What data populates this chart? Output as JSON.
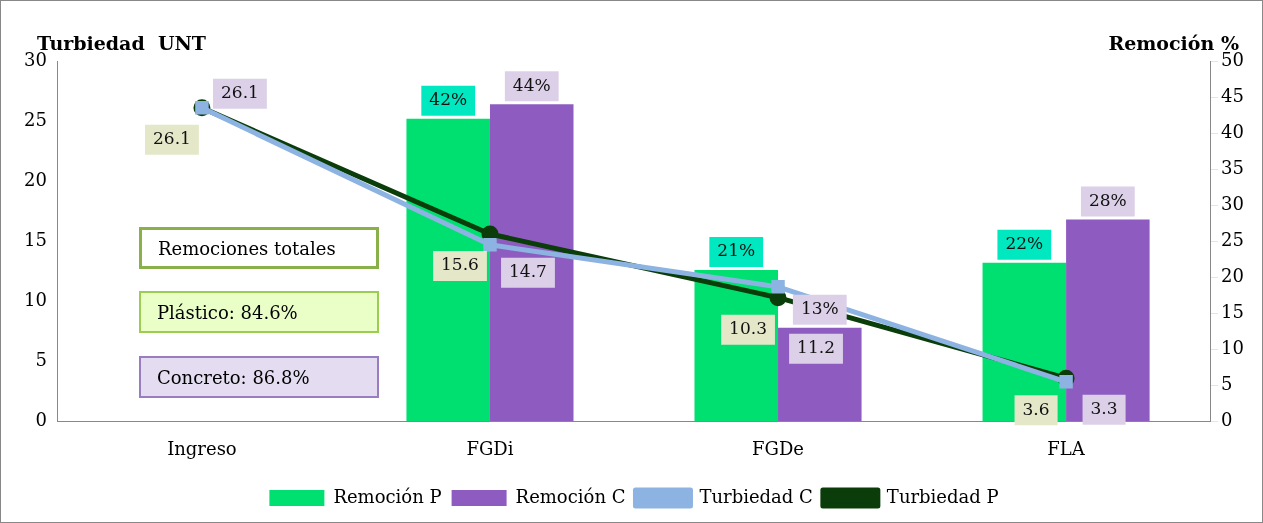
{
  "chart_data": {
    "type": "bar",
    "ylabel": "Turbiedad  UNT",
    "y2label": "Remoción %",
    "categories": [
      "Ingreso",
      "FGDi",
      "FGDe",
      "FLA"
    ],
    "series": [
      {
        "name": "Remoción P",
        "axis": "y2",
        "color": "#00e070",
        "values": [
          null,
          42,
          21,
          22
        ],
        "value_labels": [
          null,
          "42%",
          "21%",
          "22%"
        ]
      },
      {
        "name": "Remoción C",
        "axis": "y2",
        "color": "#8e5cc0",
        "values": [
          null,
          44,
          13,
          28
        ],
        "value_labels": [
          null,
          "44%",
          "13%",
          "28%"
        ]
      },
      {
        "name": "Turbiedad C",
        "type": "line",
        "axis": "y",
        "color": "#8db3e2",
        "marker": "square",
        "values": [
          26.1,
          14.7,
          11.2,
          3.3
        ],
        "value_labels": [
          "26.1",
          "14.7",
          "11.2",
          "3.3"
        ]
      },
      {
        "name": "Turbiedad P",
        "type": "line",
        "axis": "y",
        "color": "#0b3d0b",
        "marker": "circle",
        "values": [
          26.1,
          15.6,
          10.3,
          3.6
        ],
        "value_labels": [
          "26.1",
          "15.6",
          "10.3",
          "3.6"
        ]
      }
    ],
    "ylim": [
      0,
      30
    ],
    "yticks": [
      0,
      5,
      10,
      15,
      20,
      25,
      30
    ],
    "y2lim": [
      0,
      50
    ],
    "y2ticks": [
      0,
      5,
      10,
      15,
      20,
      25,
      30,
      35,
      40,
      45,
      50
    ],
    "grid": false,
    "legend": "bottom",
    "annotations": [
      "Remociones totales",
      "Plástico: 84.6%",
      "Concreto: 86.8%"
    ]
  }
}
